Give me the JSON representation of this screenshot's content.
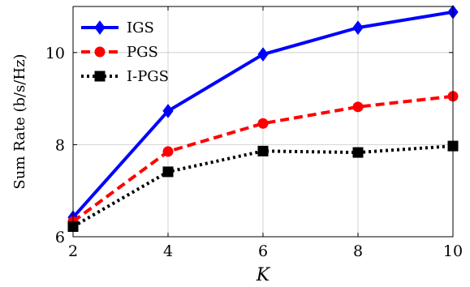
{
  "chart_data": {
    "type": "line",
    "xlabel": "K",
    "ylabel": "Sum Rate  (b/s/Hz)",
    "x": [
      2,
      4,
      6,
      8,
      10
    ],
    "xlim": [
      2,
      10
    ],
    "ylim": [
      6,
      11
    ],
    "xticks": [
      "2",
      "4",
      "6",
      "8",
      "10"
    ],
    "yticks": [
      "6",
      "8",
      "10"
    ],
    "grid": true,
    "legend_position": "top-left",
    "series": [
      {
        "name": "IGS",
        "values": [
          6.42,
          8.73,
          9.96,
          10.54,
          10.88
        ],
        "color": "#0000ff",
        "line": "solid",
        "marker": "diamond"
      },
      {
        "name": "PGS",
        "values": [
          6.33,
          7.85,
          8.46,
          8.82,
          9.05
        ],
        "color": "#ff0000",
        "line": "dashed",
        "marker": "circle"
      },
      {
        "name": "I-PGS",
        "values": [
          6.22,
          7.41,
          7.86,
          7.83,
          7.97
        ],
        "color": "#000000",
        "line": "dotted",
        "marker": "square"
      }
    ]
  }
}
